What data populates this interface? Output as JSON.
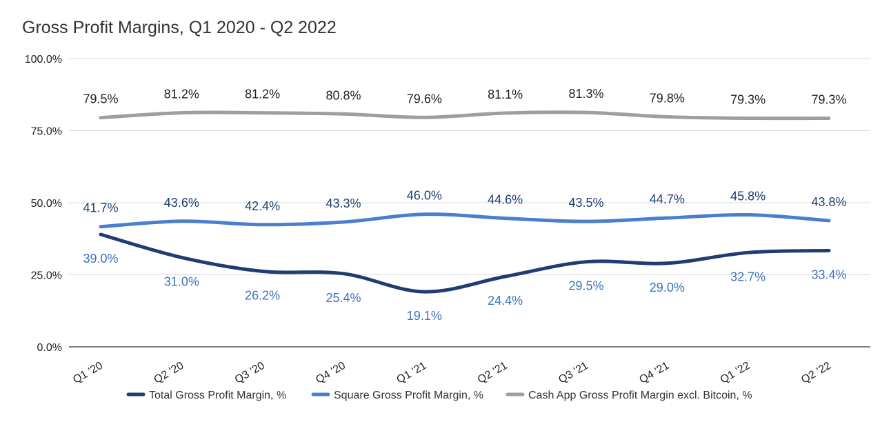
{
  "chart_data": {
    "type": "line",
    "title": "Gross Profit Margins, Q1 2020 - Q2 2022",
    "categories": [
      "Q1 '20",
      "Q2 '20",
      "Q3 '20",
      "Q4 '20",
      "Q1 '21",
      "Q2 '21",
      "Q3 '21",
      "Q4 '21",
      "Q1 '22",
      "Q2 '22"
    ],
    "ylim": [
      0,
      100
    ],
    "yticks": [
      0,
      25,
      50,
      75,
      100
    ],
    "ytick_labels": [
      "0.0%",
      "25.0%",
      "50.0%",
      "75.0%",
      "100.0%"
    ],
    "grid": true,
    "legend_position": "bottom",
    "series": [
      {
        "name": "Total Gross Profit Margin, %",
        "color": "#1f3c73",
        "label_color": "#3a73b8",
        "label_position": "below",
        "values": [
          39.0,
          31.0,
          26.2,
          25.4,
          19.1,
          24.4,
          29.5,
          29.0,
          32.7,
          33.4
        ],
        "labels": [
          "39.0%",
          "31.0%",
          "26.2%",
          "25.4%",
          "19.1%",
          "24.4%",
          "29.5%",
          "29.0%",
          "32.7%",
          "33.4%"
        ]
      },
      {
        "name": "Square Gross Profit Margin, %",
        "color": "#4a7fcf",
        "label_color": "#1f3c73",
        "label_position": "above",
        "values": [
          41.7,
          43.6,
          42.4,
          43.3,
          46.0,
          44.6,
          43.5,
          44.7,
          45.8,
          43.8
        ],
        "labels": [
          "41.7%",
          "43.6%",
          "42.4%",
          "43.3%",
          "46.0%",
          "44.6%",
          "43.5%",
          "44.7%",
          "45.8%",
          "43.8%"
        ]
      },
      {
        "name": "Cash App Gross Profit Margin excl. Bitcoin, %",
        "color": "#9e9e9e",
        "label_color": "#222222",
        "label_position": "above",
        "values": [
          79.5,
          81.2,
          81.2,
          80.8,
          79.6,
          81.1,
          81.3,
          79.8,
          79.3,
          79.3
        ],
        "labels": [
          "79.5%",
          "81.2%",
          "81.2%",
          "80.8%",
          "79.6%",
          "81.1%",
          "81.3%",
          "79.8%",
          "79.3%",
          "79.3%"
        ]
      }
    ]
  }
}
